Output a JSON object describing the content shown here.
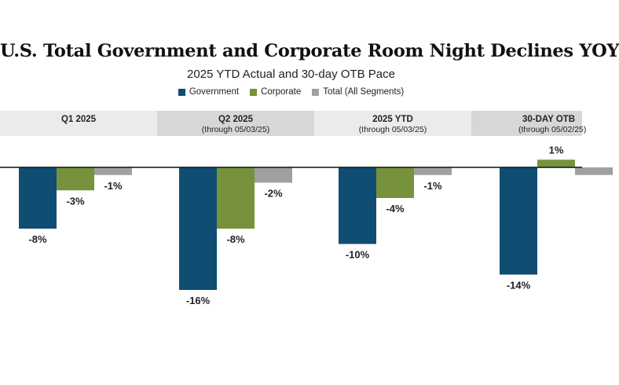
{
  "chart_data": {
    "type": "bar",
    "title": "U.S. Total Government and Corporate Room Night Declines YOY",
    "subtitle": "2025 YTD Actual and 30-day OTB Pace",
    "categories": [
      {
        "label": "Q1 2025",
        "sublabel": ""
      },
      {
        "label": "Q2 2025",
        "sublabel": "(through 05/03/25)"
      },
      {
        "label": "2025 YTD",
        "sublabel": "(through 05/03/25)"
      },
      {
        "label": "30-DAY OTB",
        "sublabel": "(through 05/02/25)"
      }
    ],
    "series": [
      {
        "name": "Government",
        "color": "#0f4e72",
        "values": [
          -8,
          -16,
          -10,
          -14
        ],
        "labels": [
          "-8%",
          "-16%",
          "-10%",
          "-14%"
        ]
      },
      {
        "name": "Corporate",
        "color": "#76923c",
        "values": [
          -3,
          -8,
          -4,
          1
        ],
        "labels": [
          "-3%",
          "-8%",
          "-4%",
          "1%"
        ]
      },
      {
        "name": "Total (All Segments)",
        "color": "#9ea0a2",
        "values": [
          -1,
          -2,
          -1,
          -1
        ],
        "labels": [
          "-1%",
          "-2%",
          "-1%",
          ""
        ]
      }
    ],
    "band_colors": [
      "#ebebeb",
      "#d7d7d7"
    ],
    "legend_position": "top-center",
    "grid": false
  }
}
